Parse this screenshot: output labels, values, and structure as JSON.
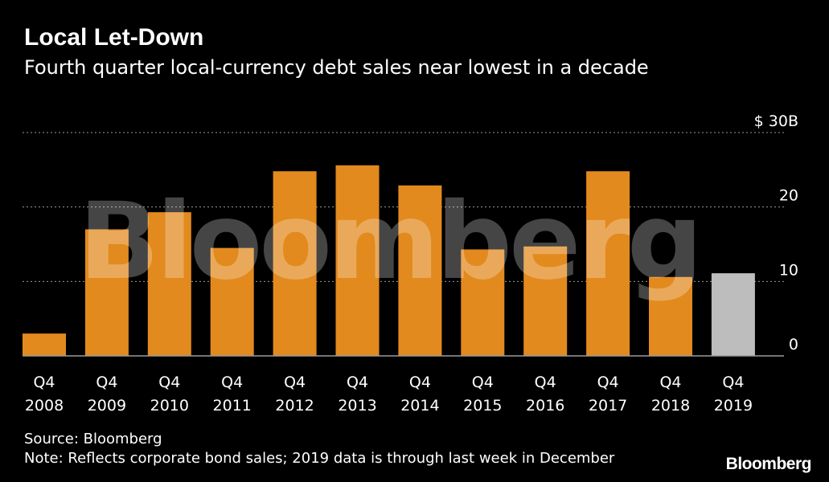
{
  "chart_data": {
    "type": "bar",
    "title": "Local Let-Down",
    "subtitle": "Fourth quarter local-currency debt sales near lowest in a decade",
    "categories": [
      [
        "Q4",
        "2008"
      ],
      [
        "Q4",
        "2009"
      ],
      [
        "Q4",
        "2010"
      ],
      [
        "Q4",
        "2011"
      ],
      [
        "Q4",
        "2012"
      ],
      [
        "Q4",
        "2013"
      ],
      [
        "Q4",
        "2014"
      ],
      [
        "Q4",
        "2015"
      ],
      [
        "Q4",
        "2016"
      ],
      [
        "Q4",
        "2017"
      ],
      [
        "Q4",
        "2018"
      ],
      [
        "Q4",
        "2019"
      ]
    ],
    "values": [
      3,
      17,
      19.3,
      14.5,
      24.8,
      25.6,
      22.9,
      14.3,
      14.7,
      24.8,
      10.6,
      11.1
    ],
    "bar_colors": [
      "#e28a1e",
      "#e28a1e",
      "#e28a1e",
      "#e28a1e",
      "#e28a1e",
      "#e28a1e",
      "#e28a1e",
      "#e28a1e",
      "#e28a1e",
      "#e28a1e",
      "#e28a1e",
      "#bdbdbd"
    ],
    "y_ticks": [
      {
        "value": 0,
        "label": "0"
      },
      {
        "value": 10,
        "label": "10"
      },
      {
        "value": 20,
        "label": "20"
      },
      {
        "value": 30,
        "label": "$ 30B"
      }
    ],
    "ylim": [
      0,
      30
    ],
    "ylabel": "",
    "xlabel": "",
    "grid": true,
    "y_axis_position": "right"
  },
  "source": "Source: Bloomberg",
  "note": "Note: Reflects corporate bond sales; 2019 data is through last week in December",
  "watermark": "Bloomberg",
  "brand": "Bloomberg",
  "colors": {
    "background": "#000000",
    "bar": "#e28a1e",
    "bar_partial": "#bdbdbd",
    "gridline": "#9a9a9a",
    "text": "#ffffff"
  }
}
